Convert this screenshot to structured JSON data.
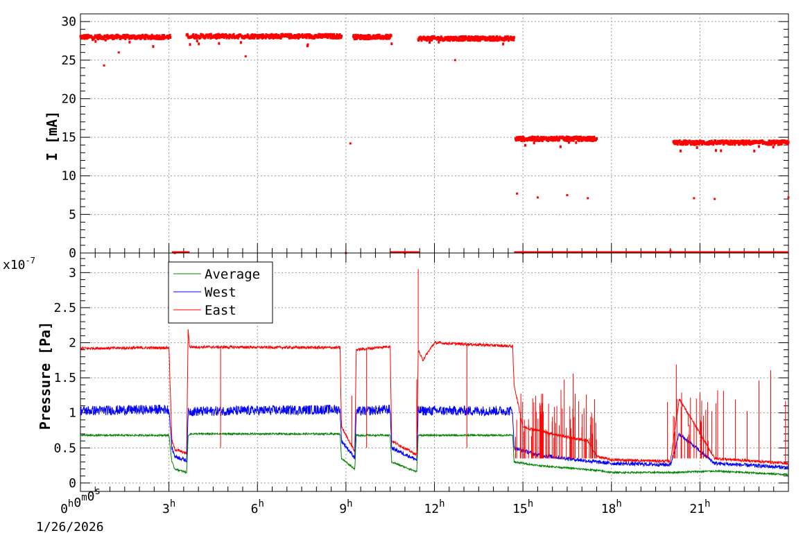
{
  "chart_data": [
    {
      "type": "scatter",
      "ylabel": "I [mA]",
      "ylim": [
        0,
        31
      ],
      "yticks": [
        "0",
        "5",
        "10",
        "15",
        "20",
        "25",
        "30"
      ],
      "grid": true,
      "series": [
        {
          "color": "#ff0000",
          "x_unit": "hours",
          "segments": [
            {
              "x0": 0.0,
              "x1": 3.05,
              "y": 28.0
            },
            {
              "x0": 3.6,
              "x1": 8.85,
              "y": 28.1
            },
            {
              "x0": 9.25,
              "x1": 10.55,
              "y": 28.0
            },
            {
              "x0": 11.45,
              "x1": 14.7,
              "y": 27.8
            },
            {
              "x0": 14.75,
              "x1": 17.5,
              "y": 14.8
            },
            {
              "x0": 20.1,
              "x1": 24.0,
              "y": 14.3
            }
          ],
          "points": [
            [
              0.8,
              24.3
            ],
            [
              1.3,
              26.0
            ],
            [
              5.6,
              25.5
            ],
            [
              9.15,
              14.2
            ],
            [
              12.7,
              25.0
            ],
            [
              14.8,
              7.7
            ],
            [
              15.5,
              7.2
            ],
            [
              16.5,
              7.5
            ],
            [
              17.2,
              7.1
            ],
            [
              20.8,
              7.1
            ],
            [
              21.5,
              7.0
            ],
            [
              24.0,
              7.2
            ],
            [
              3.2,
              0.0
            ],
            [
              9.0,
              0.0
            ],
            [
              11.0,
              0.0
            ],
            [
              15.0,
              0.0
            ],
            [
              20.0,
              0.3
            ]
          ]
        }
      ]
    },
    {
      "type": "line",
      "ylabel": "Pressure [Pa]",
      "multiplier": "x10^-7",
      "ylim": [
        0,
        3.2
      ],
      "yticks": [
        "0",
        "0.5",
        "1",
        "1.5",
        "2",
        "2.5",
        "3"
      ],
      "x_ticks": [
        {
          "hours": 0,
          "label": "0h0m0s"
        },
        {
          "hours": 3,
          "label": "3h"
        },
        {
          "hours": 6,
          "label": "6h"
        },
        {
          "hours": 9,
          "label": "9h"
        },
        {
          "hours": 12,
          "label": "12h"
        },
        {
          "hours": 15,
          "label": "15h"
        },
        {
          "hours": 18,
          "label": "18h"
        },
        {
          "hours": 21,
          "label": "21h"
        }
      ],
      "x_range_hours": [
        0,
        24
      ],
      "date": "1/26/2026",
      "legend": [
        {
          "name": "Average",
          "color": "#008000"
        },
        {
          "name": "West",
          "color": "#0000ff"
        },
        {
          "name": "East",
          "color": "#ff0000"
        }
      ],
      "legend_position": "top-left",
      "grid": true,
      "series": [
        {
          "name": "East",
          "color": "#ff0000",
          "x": [
            0,
            3.0,
            3.1,
            3.2,
            3.6,
            3.65,
            3.7,
            8.8,
            8.85,
            9.3,
            9.35,
            10.5,
            10.55,
            11.4,
            11.45,
            11.6,
            12.0,
            14.65,
            14.7,
            15.0,
            16.0,
            17.2,
            17.5,
            18.0,
            20.0,
            20.3,
            21.5,
            24.0
          ],
          "values": [
            1.92,
            1.93,
            0.6,
            0.48,
            0.42,
            2.2,
            1.94,
            1.93,
            0.8,
            0.45,
            1.9,
            1.95,
            0.6,
            0.4,
            1.9,
            1.75,
            2.0,
            1.95,
            1.4,
            0.8,
            0.7,
            0.6,
            0.38,
            0.33,
            0.31,
            1.2,
            0.35,
            0.28
          ]
        },
        {
          "name": "West",
          "color": "#0000ff",
          "x": [
            0,
            3.0,
            3.1,
            3.2,
            3.6,
            3.65,
            3.7,
            8.8,
            8.85,
            9.3,
            9.35,
            10.5,
            10.55,
            11.4,
            11.45,
            14.65,
            14.7,
            15.5,
            17.5,
            18.0,
            20.0,
            20.3,
            21.5,
            24.0
          ],
          "values": [
            1.03,
            1.05,
            0.5,
            0.38,
            0.32,
            1.0,
            1.02,
            1.05,
            0.6,
            0.36,
            1.02,
            1.05,
            0.5,
            0.33,
            1.03,
            1.03,
            0.5,
            0.4,
            0.3,
            0.28,
            0.26,
            0.7,
            0.28,
            0.22
          ]
        },
        {
          "name": "Average",
          "color": "#008000",
          "x": [
            0,
            3.0,
            3.1,
            3.2,
            3.6,
            3.65,
            3.7,
            8.8,
            8.85,
            9.3,
            9.35,
            10.5,
            10.55,
            11.4,
            11.45,
            14.65,
            14.7,
            15.5,
            17.5,
            18.0,
            20.0,
            21.5,
            24.0
          ],
          "values": [
            0.68,
            0.68,
            0.3,
            0.2,
            0.15,
            0.66,
            0.7,
            0.7,
            0.35,
            0.2,
            0.68,
            0.68,
            0.3,
            0.16,
            0.68,
            0.68,
            0.3,
            0.25,
            0.18,
            0.15,
            0.15,
            0.17,
            0.12
          ]
        }
      ],
      "spikes_east": [
        4.75,
        9.2,
        9.7,
        11.4,
        13.1,
        15.2,
        15.6,
        16.0,
        16.4,
        16.7,
        17.0,
        17.3,
        19.9,
        20.2,
        20.6,
        21.0,
        21.4,
        21.8,
        22.2,
        22.6,
        23.0,
        23.4,
        23.9
      ]
    }
  ]
}
